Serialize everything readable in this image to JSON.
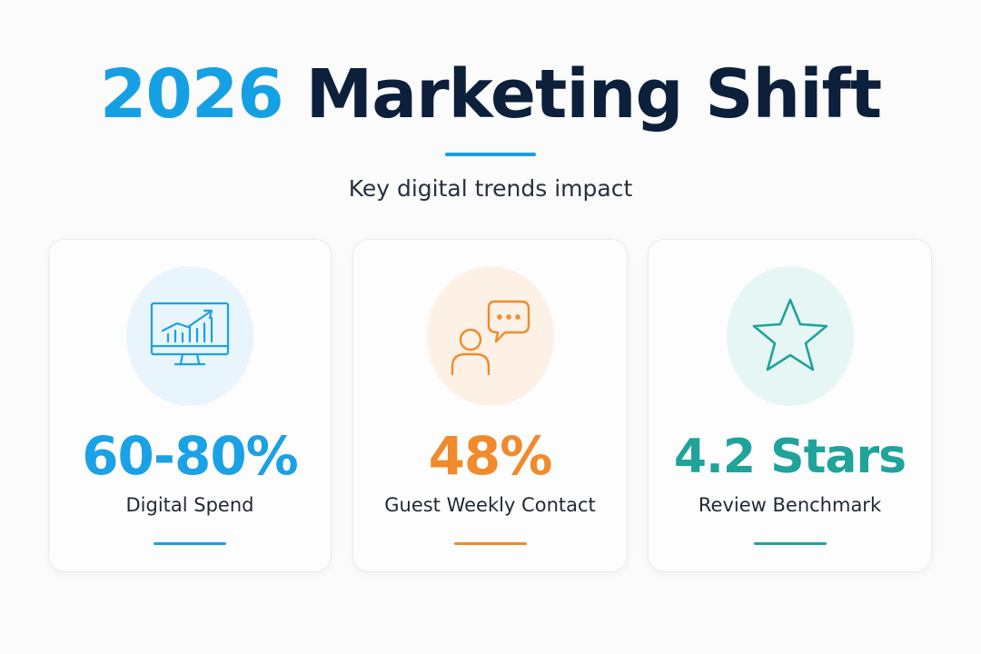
{
  "header": {
    "title_year": "2026",
    "title_rest": "Marketing Shift",
    "subtitle": "Key digital trends impact"
  },
  "cards": [
    {
      "icon": "monitor-growth-chart-icon",
      "value": "60-80%",
      "label": "Digital Spend",
      "accent": "#1aa1e6",
      "icon_bg": "#e8f5fc"
    },
    {
      "icon": "person-chat-bubble-icon",
      "value": "48%",
      "label": "Guest Weekly Contact",
      "accent": "#f08a2a",
      "icon_bg": "#fdf1e6"
    },
    {
      "icon": "star-icon",
      "value": "4.2 Stars",
      "label": "Review Benchmark",
      "accent": "#1fa39b",
      "icon_bg": "#e6f6f4"
    }
  ],
  "colors": {
    "title_accent": "#16a0e4",
    "title_dark": "#0c1f3b"
  }
}
